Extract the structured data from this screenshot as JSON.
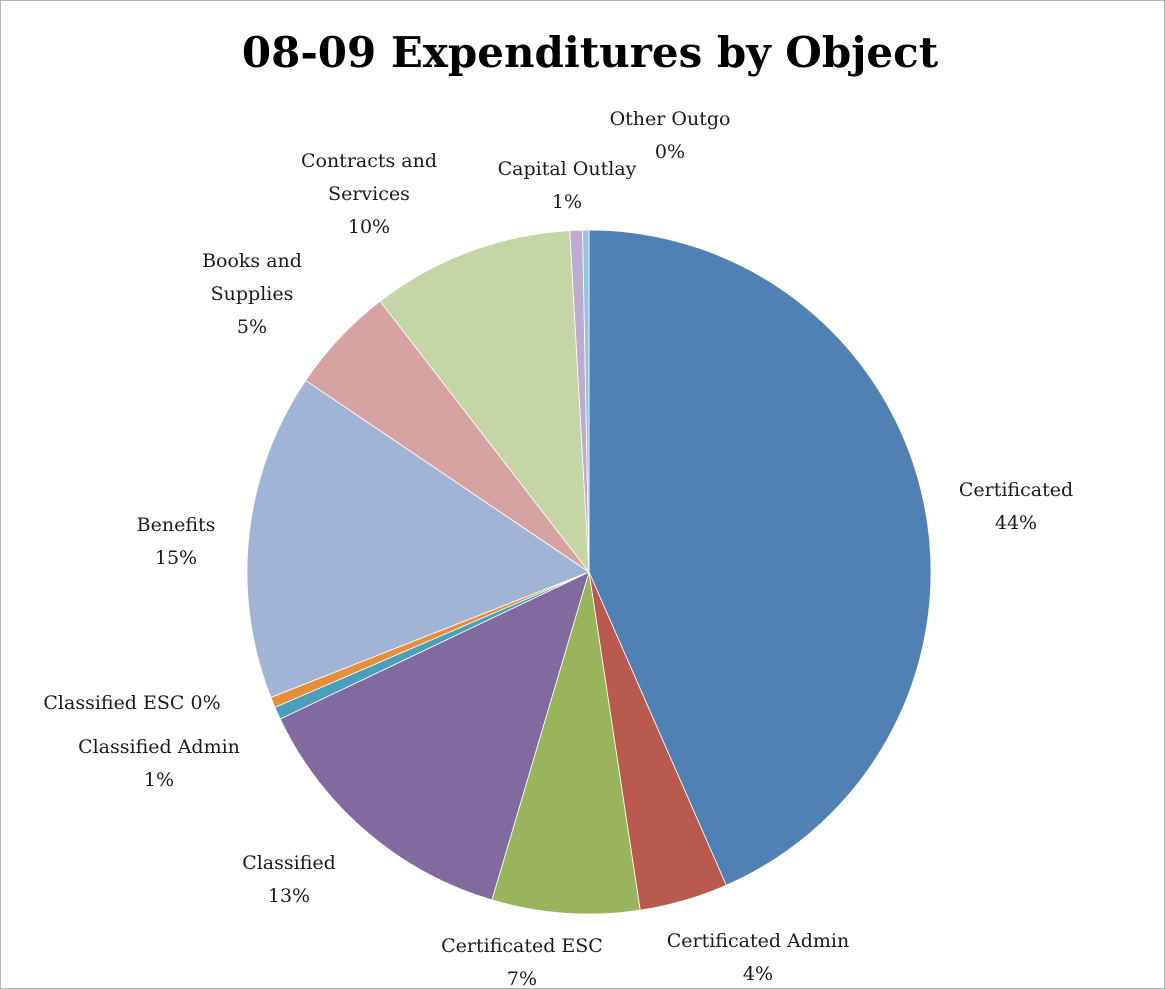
{
  "chart_data": {
    "type": "pie",
    "title": "08-09 Expenditures by Object",
    "slices": [
      {
        "name": "Certificated",
        "percent_label": "44%",
        "value": 43.6,
        "color": "#4f81b4",
        "label_lines": [
          "Certificated",
          "44%"
        ]
      },
      {
        "name": "Certificated Admin",
        "percent_label": "4%",
        "value": 4.2,
        "color": "#b85b4e",
        "label_lines": [
          "Certificated Admin",
          "4%"
        ]
      },
      {
        "name": "Certificated ESC",
        "percent_label": "7%",
        "value": 7.0,
        "color": "#9ab45b",
        "label_lines": [
          "Certificated ESC",
          "7%"
        ]
      },
      {
        "name": "Classified",
        "percent_label": "13%",
        "value": 13.4,
        "color": "#806a9e",
        "label_lines": [
          "Classified",
          "13%"
        ]
      },
      {
        "name": "Classified Admin",
        "percent_label": "1%",
        "value": 0.6,
        "color": "#4b9fbc",
        "label_lines": [
          "Classified Admin",
          "1%"
        ]
      },
      {
        "name": "Classified ESC",
        "percent_label": "0%",
        "value": 0.5,
        "color": "#e58f3a",
        "label_lines": [
          "Classified ESC 0%"
        ]
      },
      {
        "name": "Benefits",
        "percent_label": "15%",
        "value": 15.5,
        "color": "#a2b4d6",
        "label_lines": [
          "Benefits",
          "15%"
        ]
      },
      {
        "name": "Books and Supplies",
        "percent_label": "5%",
        "value": 5.1,
        "color": "#d7a3a2",
        "label_lines": [
          "Books and",
          "Supplies",
          "5%"
        ]
      },
      {
        "name": "Contracts and Services",
        "percent_label": "10%",
        "value": 9.6,
        "color": "#c5d5a6",
        "label_lines": [
          "Contracts and",
          "Services",
          "10%"
        ]
      },
      {
        "name": "Capital Outlay",
        "percent_label": "1%",
        "value": 0.6,
        "color": "#bcadd0",
        "label_lines": [
          "Capital Outlay",
          "1%"
        ]
      },
      {
        "name": "Other Outgo",
        "percent_label": "0%",
        "value": 0.3,
        "color": "#94c3e0",
        "label_lines": [
          "Other Outgo",
          "0%"
        ]
      }
    ],
    "legend": "none"
  }
}
